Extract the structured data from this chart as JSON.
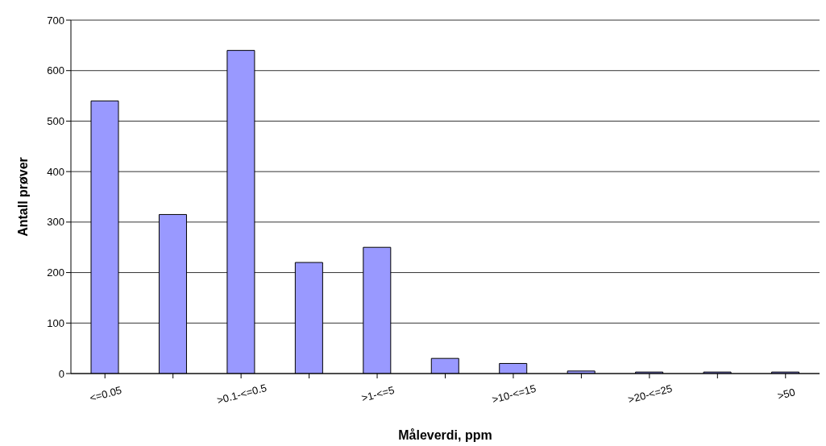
{
  "chart_data": {
    "type": "bar",
    "xlabel": "Måleverdi, ppm",
    "ylabel": "Antall prøver",
    "categories": [
      "<=0.05",
      null,
      ">0.1-<=0.5",
      null,
      ">1-<=5",
      null,
      ">10-<=15",
      null,
      ">20-<=25",
      null,
      ">50"
    ],
    "values": [
      540,
      315,
      640,
      220,
      250,
      30,
      20,
      5,
      3,
      3,
      3
    ],
    "color": "#9999ff",
    "ylim": [
      0,
      700
    ],
    "yticks": [
      0,
      100,
      200,
      300,
      400,
      500,
      600,
      700
    ],
    "grid": "y",
    "legend": false
  }
}
